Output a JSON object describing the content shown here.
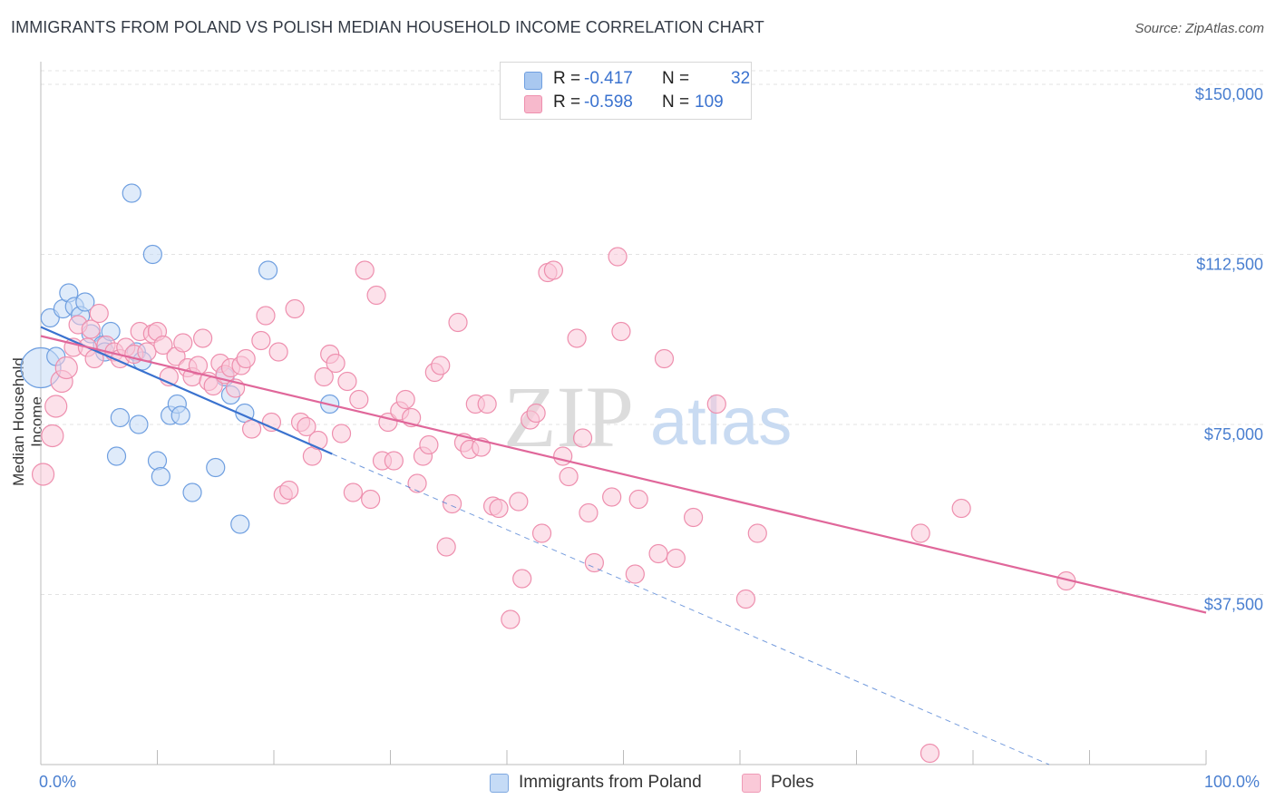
{
  "title": "IMMIGRANTS FROM POLAND VS POLISH MEDIAN HOUSEHOLD INCOME CORRELATION CHART",
  "source": "Source: ZipAtlas.com",
  "watermark": {
    "zip": "ZIP",
    "atlas": "atlas"
  },
  "legend": {
    "rows": [
      {
        "r_label": "R =",
        "r_value": "-0.417",
        "n_label": "N =",
        "n_value": "32",
        "color": "#a9c8f0",
        "stroke": "#6f9fe0"
      },
      {
        "r_label": "R =",
        "r_value": "-0.598",
        "n_label": "N =",
        "n_value": "109",
        "color": "#f7b9cc",
        "stroke": "#ee8fae"
      }
    ]
  },
  "bottom_legend": [
    {
      "label": "Immigrants from Poland",
      "color": "#c5dbf6",
      "stroke": "#7ea8e0"
    },
    {
      "label": "Poles",
      "color": "#fac9d8",
      "stroke": "#ef9ab6"
    }
  ],
  "chart_data": {
    "type": "scatter",
    "title": "IMMIGRANTS FROM POLAND VS POLISH MEDIAN HOUSEHOLD INCOME CORRELATION CHART",
    "xlabel": "",
    "ylabel": "Median Household Income",
    "x_tick_labels": [
      "0.0%",
      "100.0%"
    ],
    "y_tick_labels": [
      "$37,500",
      "$75,000",
      "$112,500",
      "$150,000"
    ],
    "y_ticks": [
      37500,
      75000,
      112500,
      150000
    ],
    "xlim": [
      0,
      100
    ],
    "ylim": [
      0,
      153000
    ],
    "grid": true,
    "legend_position": "top-center",
    "series": [
      {
        "name": "Immigrants from Poland",
        "color": "#6f9fe0",
        "fill": "#c5dbf6",
        "trend": {
          "x": [
            0,
            25
          ],
          "y": [
            96500,
            68500
          ],
          "dashed_extension": {
            "x": [
              25,
              100
            ],
            "y": [
              68500,
              -15000
            ]
          }
        },
        "points": [
          [
            0.0,
            87500,
            22
          ],
          [
            0.8,
            98500,
            10
          ],
          [
            1.3,
            90000,
            10
          ],
          [
            1.9,
            100500,
            10
          ],
          [
            2.4,
            104000,
            10
          ],
          [
            2.9,
            101000,
            10
          ],
          [
            3.4,
            99000,
            10
          ],
          [
            3.8,
            102000,
            10
          ],
          [
            4.3,
            95000,
            10
          ],
          [
            5.3,
            92500,
            10
          ],
          [
            5.5,
            91000,
            10
          ],
          [
            6.0,
            95500,
            10
          ],
          [
            7.8,
            126000,
            10
          ],
          [
            8.2,
            91000,
            10
          ],
          [
            8.7,
            89000,
            10
          ],
          [
            9.6,
            112500,
            10
          ],
          [
            6.8,
            76500,
            10
          ],
          [
            8.4,
            75000,
            10
          ],
          [
            6.5,
            68000,
            10
          ],
          [
            10.0,
            67000,
            10
          ],
          [
            10.3,
            63500,
            10
          ],
          [
            11.1,
            77000,
            10
          ],
          [
            11.7,
            79500,
            10
          ],
          [
            12.0,
            77000,
            10
          ],
          [
            13.0,
            60000,
            10
          ],
          [
            15.0,
            65500,
            10
          ],
          [
            15.8,
            85500,
            10
          ],
          [
            16.3,
            81500,
            10
          ],
          [
            17.1,
            53000,
            10
          ],
          [
            17.5,
            77500,
            10
          ],
          [
            19.5,
            109000,
            10
          ],
          [
            24.8,
            79500,
            10
          ]
        ]
      },
      {
        "name": "Poles",
        "color": "#ee8fae",
        "fill": "#fac9d8",
        "trend": {
          "x": [
            0,
            100
          ],
          "y": [
            94500,
            33500
          ]
        },
        "points": [
          [
            0.2,
            64000,
            12
          ],
          [
            1.0,
            72500,
            12
          ],
          [
            1.3,
            79000,
            12
          ],
          [
            1.8,
            84500,
            12
          ],
          [
            2.2,
            87500,
            12
          ],
          [
            2.8,
            92000,
            10
          ],
          [
            3.2,
            97000,
            10
          ],
          [
            4.0,
            92000,
            10
          ],
          [
            4.3,
            96000,
            10
          ],
          [
            4.6,
            89500,
            10
          ],
          [
            5.0,
            99500,
            10
          ],
          [
            5.6,
            92500,
            10
          ],
          [
            6.3,
            91000,
            10
          ],
          [
            6.8,
            89500,
            10
          ],
          [
            7.3,
            92000,
            10
          ],
          [
            8.0,
            90500,
            10
          ],
          [
            8.5,
            95500,
            10
          ],
          [
            9.1,
            91000,
            10
          ],
          [
            9.6,
            95000,
            10
          ],
          [
            10.0,
            95500,
            10
          ],
          [
            10.5,
            92500,
            10
          ],
          [
            11.0,
            85500,
            10
          ],
          [
            11.6,
            90000,
            10
          ],
          [
            12.2,
            93000,
            10
          ],
          [
            12.6,
            87500,
            10
          ],
          [
            13.0,
            85500,
            10
          ],
          [
            13.5,
            88000,
            10
          ],
          [
            13.9,
            94000,
            10
          ],
          [
            14.4,
            84500,
            10
          ],
          [
            14.8,
            83500,
            10
          ],
          [
            15.4,
            88500,
            10
          ],
          [
            15.8,
            86000,
            10
          ],
          [
            16.3,
            87500,
            10
          ],
          [
            16.7,
            83000,
            10
          ],
          [
            17.2,
            88000,
            10
          ],
          [
            17.6,
            89500,
            10
          ],
          [
            18.1,
            74000,
            10
          ],
          [
            18.9,
            93500,
            10
          ],
          [
            19.3,
            99000,
            10
          ],
          [
            19.8,
            75500,
            10
          ],
          [
            20.4,
            91000,
            10
          ],
          [
            20.8,
            59500,
            10
          ],
          [
            21.3,
            60500,
            10
          ],
          [
            21.8,
            100500,
            10
          ],
          [
            22.3,
            75500,
            10
          ],
          [
            22.8,
            74500,
            10
          ],
          [
            23.3,
            68000,
            10
          ],
          [
            23.8,
            71500,
            10
          ],
          [
            24.3,
            85500,
            10
          ],
          [
            24.8,
            90500,
            10
          ],
          [
            25.3,
            88500,
            10
          ],
          [
            25.8,
            73000,
            10
          ],
          [
            26.3,
            84500,
            10
          ],
          [
            26.8,
            60000,
            10
          ],
          [
            27.3,
            80500,
            10
          ],
          [
            27.8,
            109000,
            10
          ],
          [
            28.3,
            58500,
            10
          ],
          [
            28.8,
            103500,
            10
          ],
          [
            29.3,
            67000,
            10
          ],
          [
            29.8,
            75500,
            10
          ],
          [
            30.3,
            67000,
            10
          ],
          [
            30.8,
            78000,
            10
          ],
          [
            31.3,
            80500,
            10
          ],
          [
            31.8,
            76500,
            10
          ],
          [
            32.3,
            62000,
            10
          ],
          [
            32.8,
            68000,
            10
          ],
          [
            33.3,
            70500,
            10
          ],
          [
            33.8,
            86500,
            10
          ],
          [
            34.3,
            88000,
            10
          ],
          [
            34.8,
            48000,
            10
          ],
          [
            35.3,
            57500,
            10
          ],
          [
            35.8,
            97500,
            10
          ],
          [
            36.3,
            71000,
            10
          ],
          [
            36.8,
            69500,
            10
          ],
          [
            37.3,
            79500,
            10
          ],
          [
            37.8,
            70000,
            10
          ],
          [
            38.3,
            79500,
            10
          ],
          [
            38.8,
            57000,
            10
          ],
          [
            39.3,
            56500,
            10
          ],
          [
            40.3,
            32000,
            10
          ],
          [
            41.0,
            58000,
            10
          ],
          [
            41.3,
            41000,
            10
          ],
          [
            42.0,
            76000,
            10
          ],
          [
            42.5,
            77500,
            10
          ],
          [
            43.0,
            51000,
            10
          ],
          [
            43.5,
            108500,
            10
          ],
          [
            44.0,
            109000,
            10
          ],
          [
            44.8,
            68000,
            10
          ],
          [
            45.3,
            63500,
            10
          ],
          [
            46.0,
            94000,
            10
          ],
          [
            46.5,
            72000,
            10
          ],
          [
            47.0,
            55500,
            10
          ],
          [
            47.5,
            44500,
            10
          ],
          [
            49.0,
            59000,
            10
          ],
          [
            49.5,
            112000,
            10
          ],
          [
            49.8,
            95500,
            10
          ],
          [
            51.0,
            42000,
            10
          ],
          [
            51.3,
            58500,
            10
          ],
          [
            53.0,
            46500,
            10
          ],
          [
            53.5,
            89500,
            10
          ],
          [
            54.5,
            45500,
            10
          ],
          [
            56.0,
            54500,
            10
          ],
          [
            58.0,
            79500,
            10
          ],
          [
            60.5,
            36500,
            10
          ],
          [
            61.5,
            51000,
            10
          ],
          [
            75.5,
            51000,
            10
          ],
          [
            79.0,
            56500,
            10
          ],
          [
            76.3,
            2500,
            10
          ],
          [
            88.0,
            40500,
            10
          ]
        ]
      }
    ]
  }
}
